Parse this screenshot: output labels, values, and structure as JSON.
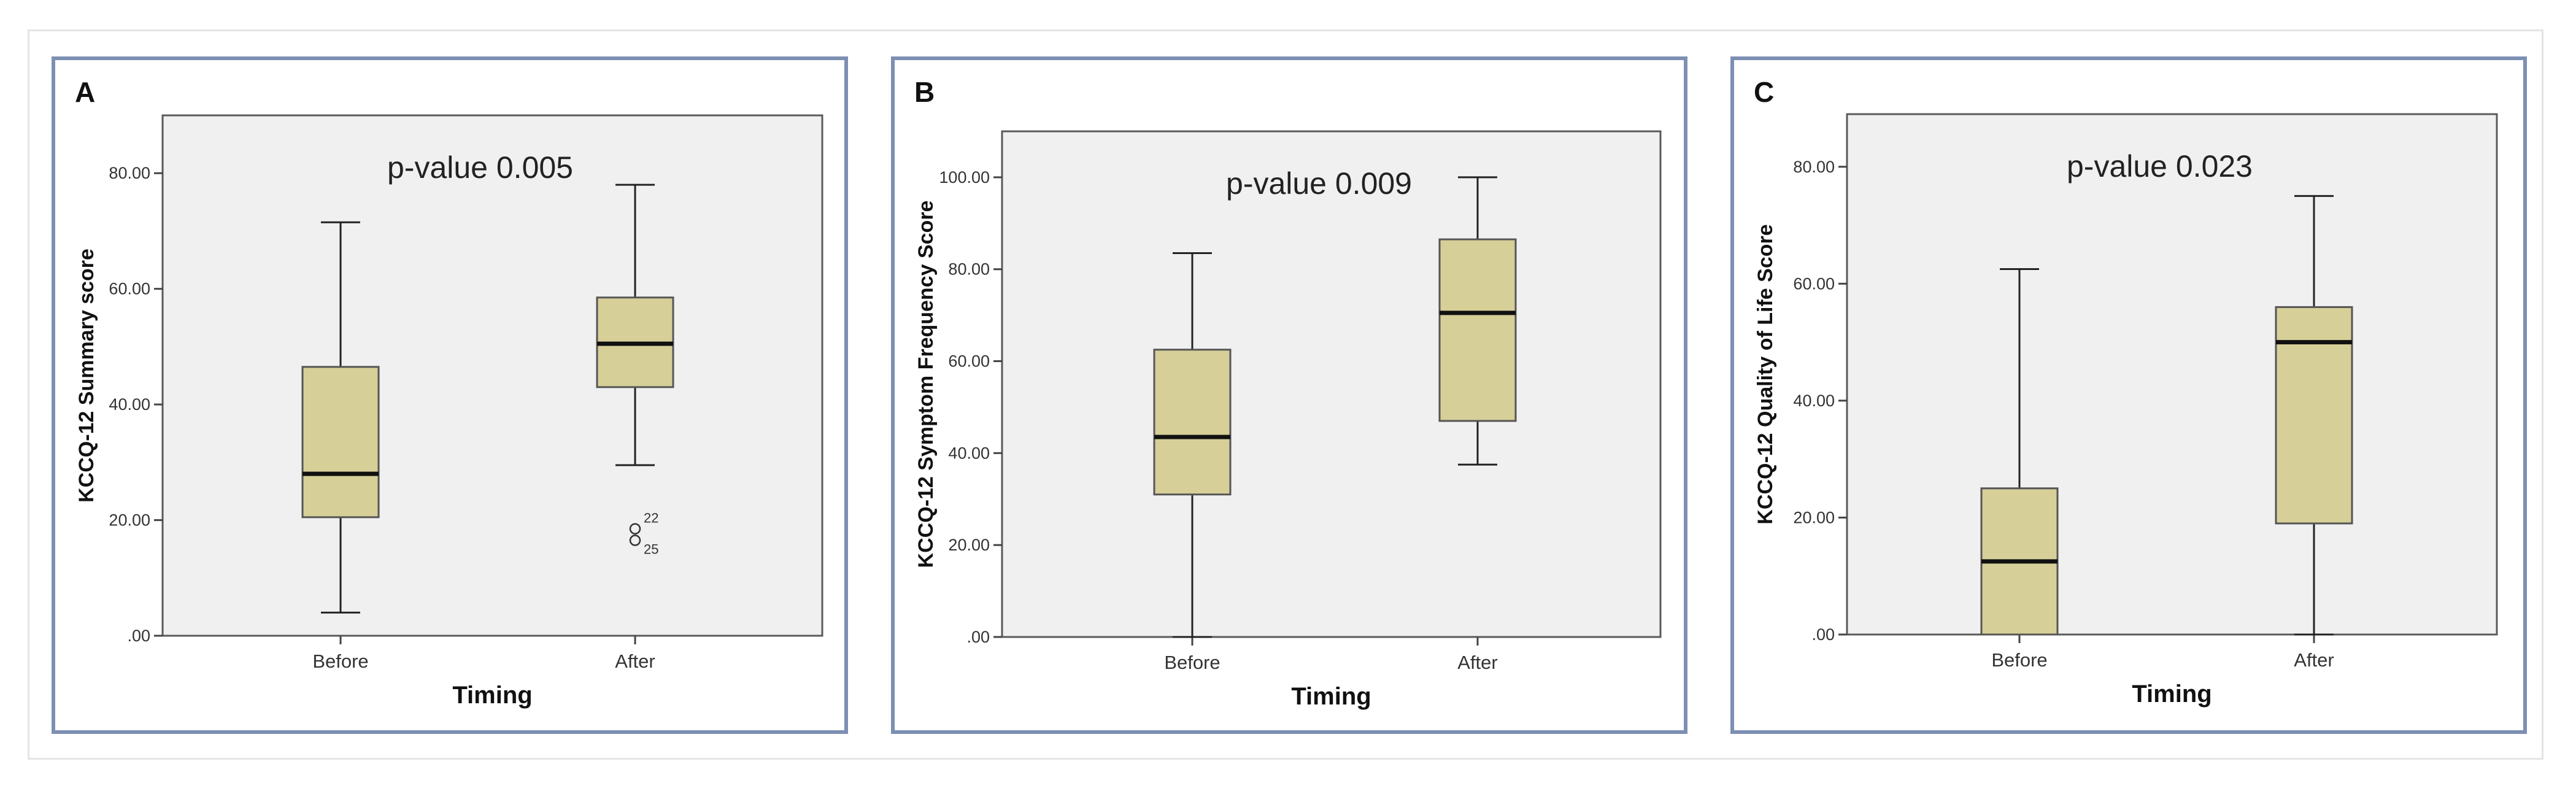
{
  "colors": {
    "box_fill": "#d6cf98",
    "plot_bg": "#f0f0f0",
    "panel_border": "#7d8fb3",
    "inner_bg": "#ffffff"
  },
  "chart_data": [
    {
      "type": "box",
      "panel_label": "A",
      "annotation": "p-value 0.005",
      "xlabel": "Timing",
      "ylabel": "KCCQ-12 Summary score",
      "categories": [
        "Before",
        "After"
      ],
      "ylim": [
        0,
        90
      ],
      "yticks": [
        0,
        20,
        40,
        60,
        80
      ],
      "ytick_labels": [
        ".00",
        "20.00",
        "40.00",
        "60.00",
        "80.00"
      ],
      "boxes": [
        {
          "category": "Before",
          "min": 4,
          "q1": 20.5,
          "median": 28,
          "q3": 46.5,
          "max": 71.5,
          "outliers": []
        },
        {
          "category": "After",
          "min": 29.5,
          "q1": 43,
          "median": 50.5,
          "q3": 58.5,
          "max": 78,
          "outliers": [
            {
              "value": 18.5,
              "label": "22"
            },
            {
              "value": 16.5,
              "label": "25"
            }
          ]
        }
      ]
    },
    {
      "type": "box",
      "panel_label": "B",
      "annotation": "p-value 0.009",
      "xlabel": "Timing",
      "ylabel": "KCCQ-12 Symptom Frequency Score",
      "categories": [
        "Before",
        "After"
      ],
      "ylim": [
        0,
        110
      ],
      "yticks": [
        0,
        20,
        40,
        60,
        80,
        100
      ],
      "ytick_labels": [
        ".00",
        "20.00",
        "40.00",
        "60.00",
        "80.00",
        "100.00"
      ],
      "boxes": [
        {
          "category": "Before",
          "min": 0,
          "q1": 31,
          "median": 43.5,
          "q3": 62.5,
          "max": 83.5,
          "outliers": []
        },
        {
          "category": "After",
          "min": 37.5,
          "q1": 47,
          "median": 70.5,
          "q3": 86.5,
          "max": 100,
          "outliers": []
        }
      ]
    },
    {
      "type": "box",
      "panel_label": "C",
      "annotation": "p-value 0.023",
      "xlabel": "Timing",
      "ylabel": "KCCQ-12 Quality of Life Score",
      "categories": [
        "Before",
        "After"
      ],
      "ylim": [
        0,
        89
      ],
      "yticks": [
        0,
        20,
        40,
        60,
        80
      ],
      "ytick_labels": [
        ".00",
        "20.00",
        "40.00",
        "60.00",
        "80.00"
      ],
      "boxes": [
        {
          "category": "Before",
          "min": 0,
          "q1": 0,
          "median": 12.5,
          "q3": 25,
          "max": 62.5,
          "outliers": []
        },
        {
          "category": "After",
          "min": 0,
          "q1": 19,
          "median": 50,
          "q3": 56,
          "max": 75,
          "outliers": []
        }
      ]
    }
  ]
}
